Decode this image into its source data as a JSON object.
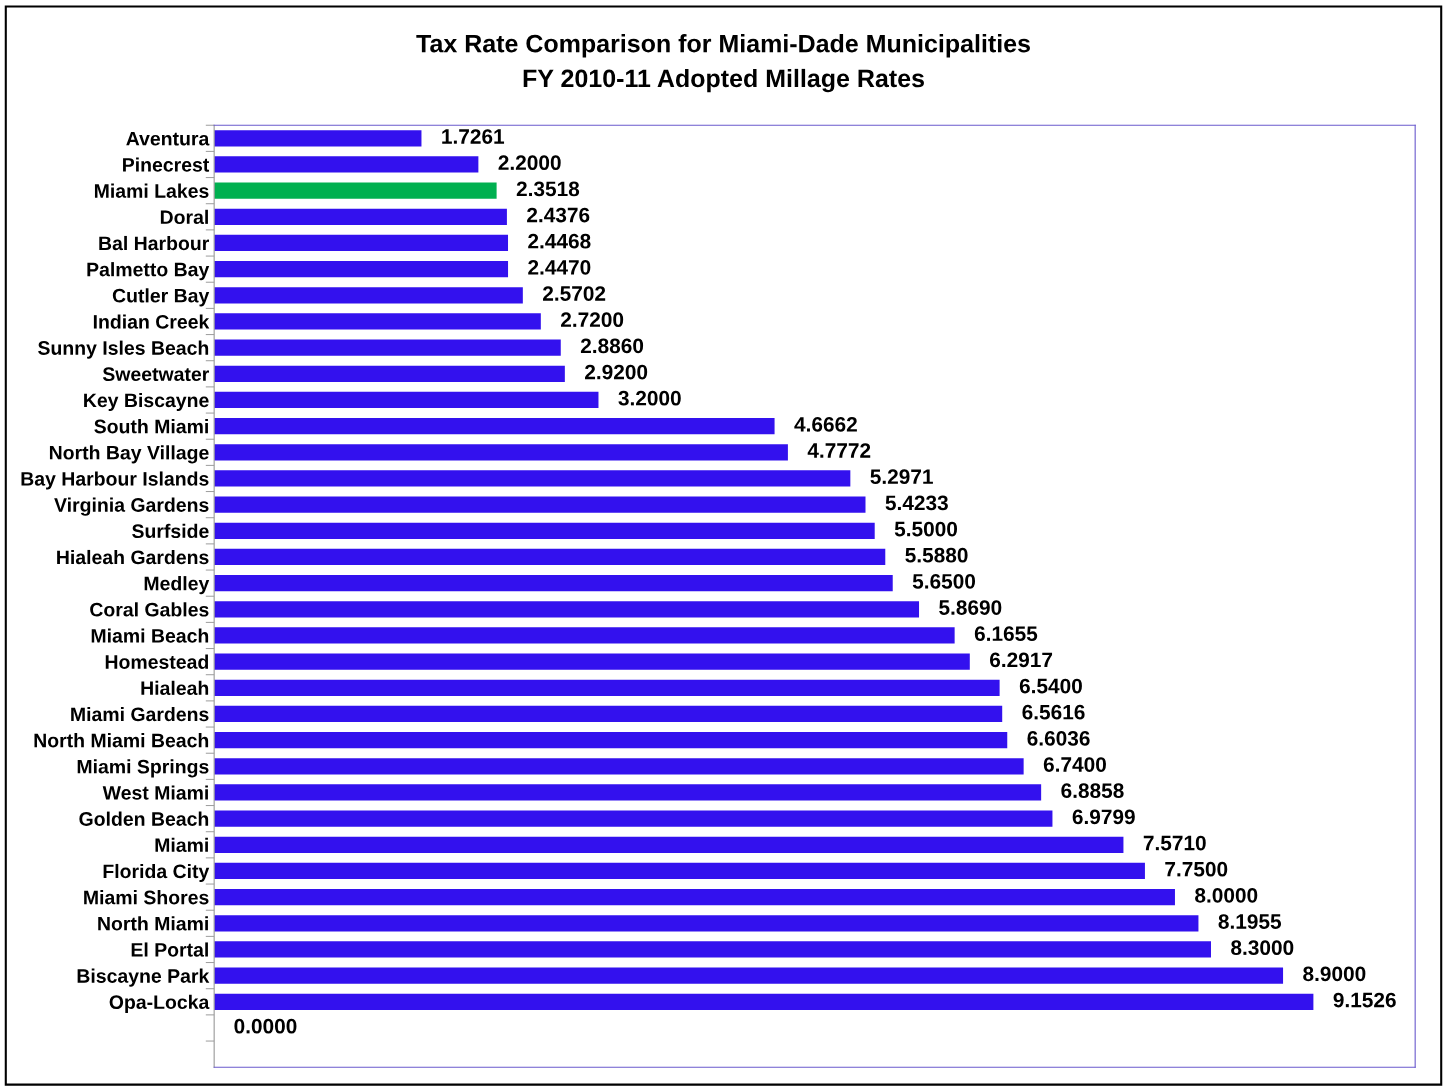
{
  "chart_data": {
    "type": "bar",
    "orientation": "horizontal",
    "title": "Tax Rate Comparison for Miami-Dade Municipalities",
    "subtitle": "FY 2010-11 Adopted Millage Rates",
    "categories": [
      "Aventura",
      "Pinecrest",
      "Miami Lakes",
      "Doral",
      "Bal Harbour",
      "Palmetto Bay",
      "Cutler Bay",
      "Indian Creek",
      "Sunny Isles Beach",
      "Sweetwater",
      "Key Biscayne",
      "South Miami",
      "North Bay Village",
      "Bay Harbour Islands",
      "Virginia Gardens",
      "Surfside",
      "Hialeah Gardens",
      "Medley",
      "Coral Gables",
      "Miami Beach",
      "Homestead",
      "Hialeah",
      "Miami Gardens",
      "North Miami Beach",
      "Miami Springs",
      "West Miami",
      "Golden Beach",
      "Miami",
      "Florida City",
      "Miami Shores",
      "North Miami",
      "El Portal",
      "Biscayne Park",
      "Opa-Locka",
      null
    ],
    "values": [
      1.7261,
      2.2,
      2.3518,
      2.4376,
      2.4468,
      2.447,
      2.5702,
      2.72,
      2.886,
      2.92,
      3.2,
      4.6662,
      4.7772,
      5.2971,
      5.4233,
      5.5,
      5.588,
      5.65,
      5.869,
      6.1655,
      6.2917,
      6.54,
      6.5616,
      6.6036,
      6.74,
      6.8858,
      6.9799,
      7.571,
      7.75,
      8.0,
      8.1955,
      8.3,
      8.9,
      9.1526,
      0
    ],
    "value_labels": [
      "1.7261",
      "2.2000",
      "2.3518",
      "2.4376",
      "2.4468",
      "2.4470",
      "2.5702",
      "2.7200",
      "2.8860",
      "2.9200",
      "3.2000",
      "4.6662",
      "4.7772",
      "5.2971",
      "5.4233",
      "5.5000",
      "5.5880",
      "5.6500",
      "5.8690",
      "6.1655",
      "6.2917",
      "6.5400",
      "6.5616",
      "6.6036",
      "6.7400",
      "6.8858",
      "6.9799",
      "7.5710",
      "7.7500",
      "8.0000",
      "8.1955",
      "8.3000",
      "8.9000",
      "9.1526",
      "0.0000"
    ],
    "colors": [
      "#3311ee",
      "#3311ee",
      "#00b050",
      "#3311ee",
      "#3311ee",
      "#3311ee",
      "#3311ee",
      "#3311ee",
      "#3311ee",
      "#3311ee",
      "#3311ee",
      "#3311ee",
      "#3311ee",
      "#3311ee",
      "#3311ee",
      "#3311ee",
      "#3311ee",
      "#3311ee",
      "#3311ee",
      "#3311ee",
      "#3311ee",
      "#3311ee",
      "#3311ee",
      "#3311ee",
      "#3311ee",
      "#3311ee",
      "#3311ee",
      "#3311ee",
      "#3311ee",
      "#3311ee",
      "#3311ee",
      "#3311ee",
      "#3311ee",
      "#3311ee",
      "#3311ee"
    ],
    "xlim": [
      0,
      10
    ],
    "tick_labels": "y",
    "grid": false,
    "legend": false
  }
}
